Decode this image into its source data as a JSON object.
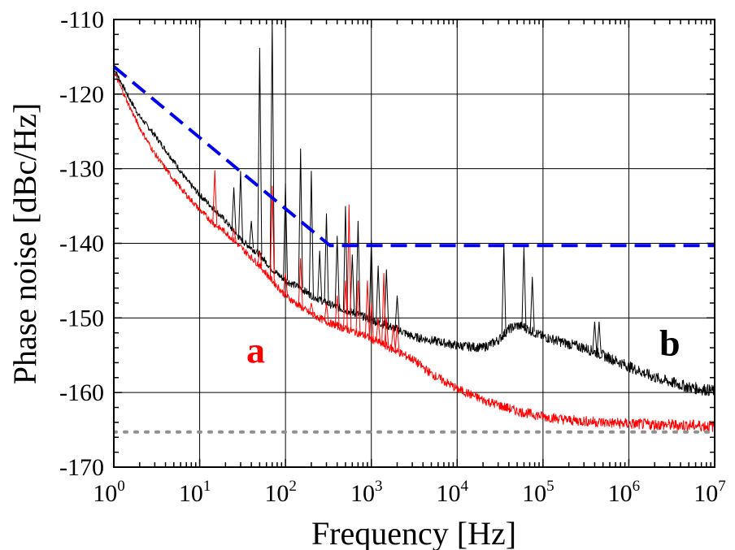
{
  "chart_data": {
    "type": "line",
    "title": "",
    "xlabel": "Frequency [Hz]",
    "ylabel": "Phase noise [dBc/Hz]",
    "xscale": "log",
    "xlim": [
      1,
      10000000
    ],
    "ylim": [
      -170,
      -110
    ],
    "grid": true,
    "x_ticks": [
      {
        "base": "10",
        "exp": "0"
      },
      {
        "base": "10",
        "exp": "1"
      },
      {
        "base": "10",
        "exp": "2"
      },
      {
        "base": "10",
        "exp": "3"
      },
      {
        "base": "10",
        "exp": "4"
      },
      {
        "base": "10",
        "exp": "5"
      },
      {
        "base": "10",
        "exp": "6"
      },
      {
        "base": "10",
        "exp": "7"
      }
    ],
    "y_ticks": [
      "-110",
      "-120",
      "-130",
      "-140",
      "-150",
      "-160",
      "-170"
    ],
    "series": [
      {
        "name": "b",
        "color": "#000000",
        "style": "solid",
        "points": [
          [
            1,
            -116.5
          ],
          [
            1.5,
            -120.5
          ],
          [
            2,
            -123
          ],
          [
            3,
            -125.5
          ],
          [
            5,
            -129
          ],
          [
            7,
            -131.5
          ],
          [
            10,
            -133.5
          ],
          [
            15,
            -135.5
          ],
          [
            20,
            -137
          ],
          [
            30,
            -139.5
          ],
          [
            50,
            -141.5
          ],
          [
            70,
            -143.5
          ],
          [
            100,
            -145
          ],
          [
            150,
            -146
          ],
          [
            200,
            -147
          ],
          [
            300,
            -148
          ],
          [
            500,
            -149
          ],
          [
            700,
            -149.5
          ],
          [
            1000,
            -150.3
          ],
          [
            2000,
            -151.5
          ],
          [
            3000,
            -152.5
          ],
          [
            5000,
            -153
          ],
          [
            10000,
            -153.7
          ],
          [
            20000,
            -154
          ],
          [
            30000,
            -153
          ],
          [
            40000,
            -151.5
          ],
          [
            50000,
            -151
          ],
          [
            60000,
            -151.2
          ],
          [
            80000,
            -152
          ],
          [
            100000,
            -152.5
          ],
          [
            200000,
            -153.5
          ],
          [
            300000,
            -154
          ],
          [
            500000,
            -155
          ],
          [
            1000000,
            -156.5
          ],
          [
            2000000,
            -158
          ],
          [
            5000000,
            -159.3
          ],
          [
            10000000,
            -159.8
          ]
        ],
        "spikes": [
          [
            25,
            -132.5
          ],
          [
            30,
            -130.3
          ],
          [
            40,
            -137
          ],
          [
            50,
            -113.8
          ],
          [
            70,
            -110
          ],
          [
            100,
            -132
          ],
          [
            150,
            -127.3
          ],
          [
            200,
            -130.3
          ],
          [
            250,
            -141
          ],
          [
            300,
            -136
          ],
          [
            400,
            -139
          ],
          [
            500,
            -135
          ],
          [
            600,
            -141.5
          ],
          [
            700,
            -137
          ],
          [
            1000,
            -139.6
          ],
          [
            1200,
            -143
          ],
          [
            1500,
            -143.5
          ],
          [
            2000,
            -147
          ],
          [
            35000,
            -140
          ],
          [
            60000,
            -140.5
          ],
          [
            75000,
            -144.5
          ],
          [
            400000,
            -150.5
          ],
          [
            450000,
            -150.5
          ]
        ]
      },
      {
        "name": "a",
        "color": "#ff0000",
        "style": "solid",
        "points": [
          [
            1,
            -117
          ],
          [
            1.5,
            -121.5
          ],
          [
            2,
            -124.5
          ],
          [
            3,
            -128
          ],
          [
            5,
            -131.5
          ],
          [
            7,
            -133.5
          ],
          [
            10,
            -135.5
          ],
          [
            15,
            -137.5
          ],
          [
            20,
            -138.5
          ],
          [
            30,
            -140.5
          ],
          [
            50,
            -143
          ],
          [
            70,
            -145
          ],
          [
            100,
            -147
          ],
          [
            150,
            -148.5
          ],
          [
            200,
            -149.5
          ],
          [
            300,
            -150.5
          ],
          [
            500,
            -151.5
          ],
          [
            700,
            -152
          ],
          [
            1000,
            -152.8
          ],
          [
            2000,
            -154.5
          ],
          [
            3000,
            -155.5
          ],
          [
            5000,
            -157.5
          ],
          [
            10000,
            -159.5
          ],
          [
            20000,
            -161
          ],
          [
            50000,
            -162.5
          ],
          [
            100000,
            -163.2
          ],
          [
            200000,
            -163.7
          ],
          [
            500000,
            -164
          ],
          [
            1000000,
            -164.2
          ],
          [
            10000000,
            -164.5
          ]
        ],
        "spikes": [
          [
            15,
            -130.2
          ],
          [
            25,
            -138
          ],
          [
            50,
            -141
          ],
          [
            70,
            -132.3
          ],
          [
            100,
            -144
          ],
          [
            150,
            -142
          ],
          [
            200,
            -148
          ],
          [
            300,
            -148
          ],
          [
            400,
            -147
          ],
          [
            500,
            -145
          ],
          [
            550,
            -134.8
          ],
          [
            700,
            -145
          ],
          [
            900,
            -145
          ],
          [
            1000,
            -148
          ],
          [
            1200,
            -150
          ],
          [
            1400,
            -144
          ],
          [
            1500,
            -150
          ],
          [
            1800,
            -151
          ],
          [
            2000,
            -151
          ]
        ]
      },
      {
        "color": "#0000ee",
        "style": "dashed",
        "points": [
          [
            1,
            -116.3
          ],
          [
            330,
            -140.3
          ],
          [
            10000000,
            -140.3
          ]
        ]
      },
      {
        "color": "#909090",
        "style": "dotted",
        "points": [
          [
            1,
            -165.3
          ],
          [
            10000000,
            -165.3
          ]
        ]
      }
    ],
    "annotations": [
      {
        "text": "a",
        "x": 45,
        "y": -156,
        "color": "#ff0000"
      },
      {
        "text": "b",
        "x": 3000000,
        "y": -155,
        "color": "#000000"
      }
    ]
  }
}
